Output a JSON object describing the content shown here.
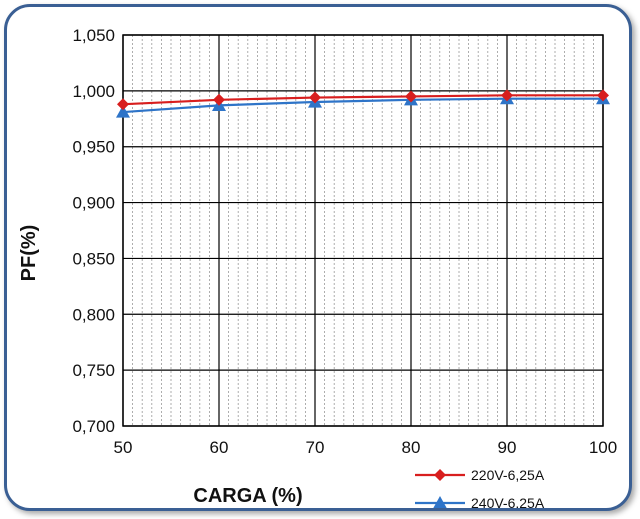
{
  "chart_data": {
    "type": "line",
    "title": "",
    "xlabel": "CARGA (%)",
    "ylabel": "PF(%)",
    "x": [
      50,
      60,
      70,
      80,
      90,
      100
    ],
    "x_tick_labels": [
      "50",
      "60",
      "70",
      "80",
      "90",
      "100"
    ],
    "xlim": [
      50,
      100
    ],
    "ylim": [
      0.7,
      1.05
    ],
    "y_ticks": [
      0.7,
      0.75,
      0.8,
      0.85,
      0.9,
      0.95,
      1.0,
      1.05
    ],
    "y_tick_labels": [
      "0,700",
      "0,750",
      "0,800",
      "0,850",
      "0,900",
      "0,950",
      "1,000",
      "1,050"
    ],
    "grid": "on",
    "legend_position": "bottom-right",
    "series": [
      {
        "name": "220V-6,25A",
        "values": [
          0.988,
          0.992,
          0.994,
          0.995,
          0.996,
          0.996
        ],
        "color": "#d81e1e",
        "marker": "diamond"
      },
      {
        "name": "240V-6,25A",
        "values": [
          0.981,
          0.987,
          0.99,
          0.992,
          0.993,
          0.993
        ],
        "color": "#2e74c8",
        "marker": "triangle"
      }
    ]
  }
}
